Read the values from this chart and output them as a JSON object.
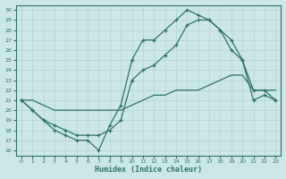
{
  "xlabel": "Humidex (Indice chaleur)",
  "bg_color": "#cce8e6",
  "line_color": "#2d7268",
  "grid_color": "#aed4d0",
  "xlim": [
    -0.5,
    23.5
  ],
  "ylim": [
    15.5,
    30.5
  ],
  "xticks": [
    0,
    1,
    2,
    3,
    4,
    5,
    6,
    7,
    8,
    9,
    10,
    11,
    12,
    13,
    14,
    15,
    16,
    17,
    18,
    19,
    20,
    21,
    22,
    23
  ],
  "yticks": [
    16,
    17,
    18,
    19,
    20,
    21,
    22,
    23,
    24,
    25,
    26,
    27,
    28,
    29,
    30
  ],
  "line1_x": [
    0,
    1,
    2,
    3,
    4,
    5,
    6,
    7,
    8,
    9,
    10,
    11,
    12,
    13,
    14,
    15,
    16,
    17,
    18,
    19,
    20,
    21,
    22,
    23
  ],
  "line1_y": [
    21,
    20,
    19,
    18,
    17.5,
    17,
    17,
    16,
    18.5,
    20.5,
    25,
    27,
    27,
    28,
    29,
    30,
    29.5,
    29,
    28,
    27,
    25,
    22,
    22,
    21
  ],
  "line2_x": [
    0,
    1,
    2,
    3,
    4,
    5,
    6,
    7,
    8,
    9,
    10,
    11,
    12,
    13,
    14,
    15,
    16,
    17,
    18,
    19,
    20,
    21,
    22,
    23
  ],
  "line2_y": [
    21,
    20,
    19,
    18.5,
    18,
    17.5,
    17.5,
    17.5,
    18,
    19,
    23,
    24,
    24.5,
    25.5,
    26.5,
    28.5,
    29,
    29,
    28,
    26,
    25,
    21,
    21.5,
    21
  ],
  "line3_x": [
    0,
    1,
    2,
    3,
    4,
    5,
    6,
    7,
    8,
    9,
    10,
    11,
    12,
    13,
    14,
    15,
    16,
    17,
    18,
    19,
    20,
    21,
    22,
    23
  ],
  "line3_y": [
    21,
    21,
    20.5,
    20,
    20,
    20,
    20,
    20,
    20,
    20,
    20.5,
    21,
    21.5,
    21.5,
    22,
    22,
    22,
    22.5,
    23,
    23.5,
    23.5,
    22,
    22,
    22
  ]
}
